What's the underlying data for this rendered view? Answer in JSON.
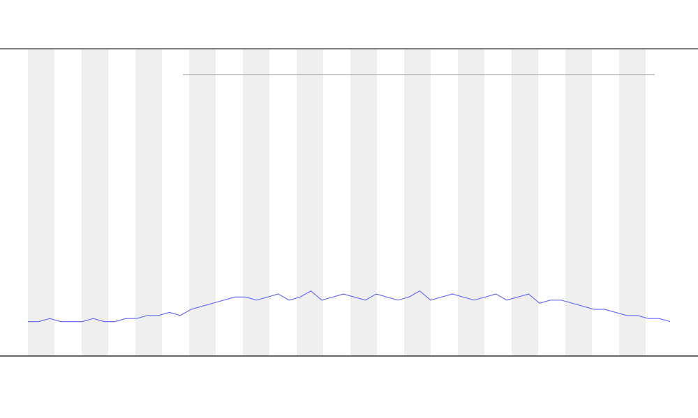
{
  "chart_data": {
    "type": "line",
    "categories": [
      null,
      null,
      null,
      null,
      null,
      null,
      null,
      null,
      null,
      null,
      null,
      null,
      null,
      null,
      null,
      null,
      null,
      null,
      null,
      null,
      null,
      null,
      null,
      null,
      null,
      null,
      null,
      null,
      null,
      null,
      null,
      null,
      null,
      null,
      null,
      null,
      null,
      null,
      null,
      null,
      null,
      null,
      null,
      null,
      null,
      null,
      null,
      null,
      null,
      null,
      null,
      null,
      null,
      null,
      null,
      null,
      null,
      null,
      null,
      null
    ],
    "series": [
      {
        "color": "#6b6bff",
        "values": [
          11,
          11,
          12,
          11,
          11,
          11,
          12,
          11,
          11,
          12,
          12,
          13,
          13,
          14,
          13,
          15,
          16,
          17,
          18,
          19,
          19,
          18,
          19,
          20,
          18,
          19,
          21,
          18,
          19,
          20,
          19,
          18,
          20,
          19,
          18,
          19,
          21,
          18,
          19,
          20,
          19,
          18,
          19,
          20,
          18,
          19,
          20,
          17,
          18,
          18,
          17,
          16,
          15,
          15,
          14,
          13,
          13,
          12,
          12,
          11
        ]
      }
    ],
    "ylim": [
      0,
      100
    ]
  }
}
